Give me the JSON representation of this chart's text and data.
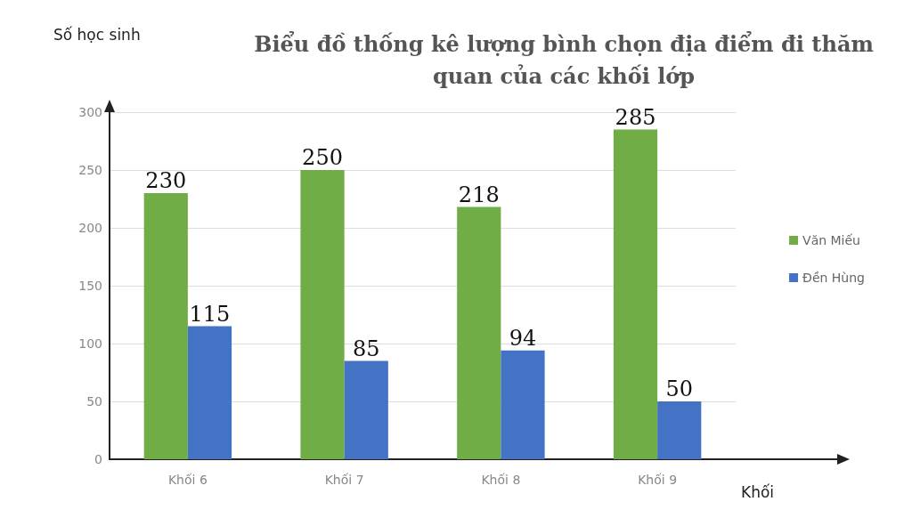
{
  "chart_data": {
    "type": "bar",
    "title": "Biểu đồ thống kê lượng bình chọn địa điểm đi thăm\nquan của các khối lớp",
    "xlabel": "Khối",
    "ylabel": "Số học sinh",
    "categories": [
      "Khối 6",
      "Khối 7",
      "Khối 8",
      "Khối 9"
    ],
    "series": [
      {
        "name": "Văn Miếu",
        "color": "#70ad47",
        "values": [
          230,
          250,
          218,
          285
        ]
      },
      {
        "name": "Đền Hùng",
        "color": "#4472c4",
        "values": [
          115,
          85,
          94,
          50
        ]
      }
    ],
    "ylim": [
      0,
      300
    ],
    "yticks": [
      0,
      50,
      100,
      150,
      200,
      250,
      300
    ],
    "grid": "y",
    "legend": "right",
    "data_labels": true
  }
}
